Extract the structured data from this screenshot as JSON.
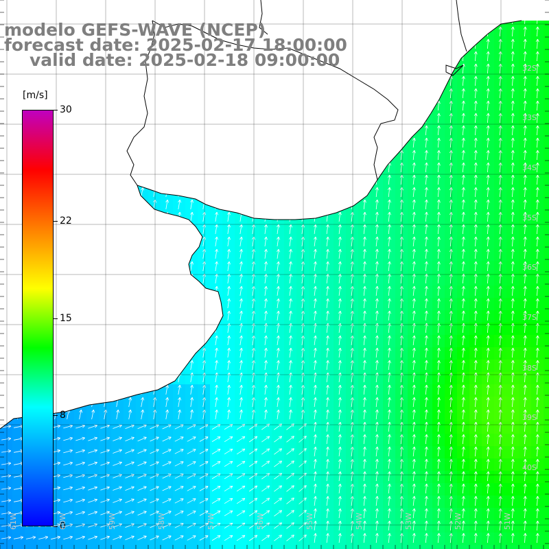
{
  "title": {
    "line1": "modelo GEFS-WAVE (NCEP)",
    "line2": "forecast date: 2025-02-17 18:00:00",
    "line3": "valid date: 2025-02-18 09:00:00"
  },
  "colorbar": {
    "unit": "[m/s]",
    "min": 0,
    "max": 30,
    "ticks": [
      "30",
      "22",
      "15",
      "8",
      "0"
    ],
    "tick_values": [
      30,
      22,
      15,
      8,
      0
    ],
    "stops": [
      "#0000ff",
      "#0080ff",
      "#00ffff",
      "#00ff00",
      "#ffff00",
      "#ff8000",
      "#ff0000",
      "#c000c0"
    ]
  },
  "lat_labels": [
    "32S",
    "33S",
    "34S",
    "35S",
    "36S",
    "37S",
    "38S",
    "39S",
    "40S"
  ],
  "lon_labels": [
    "61W",
    "60W",
    "59W",
    "58W",
    "57W",
    "56W",
    "55W",
    "54W",
    "53W",
    "52W",
    "51W"
  ],
  "colors": {
    "land": "#ffffff",
    "coastline": "#000000",
    "grid": "#000000",
    "arrow": "#ffffff",
    "title": "#7f7f7f"
  }
}
